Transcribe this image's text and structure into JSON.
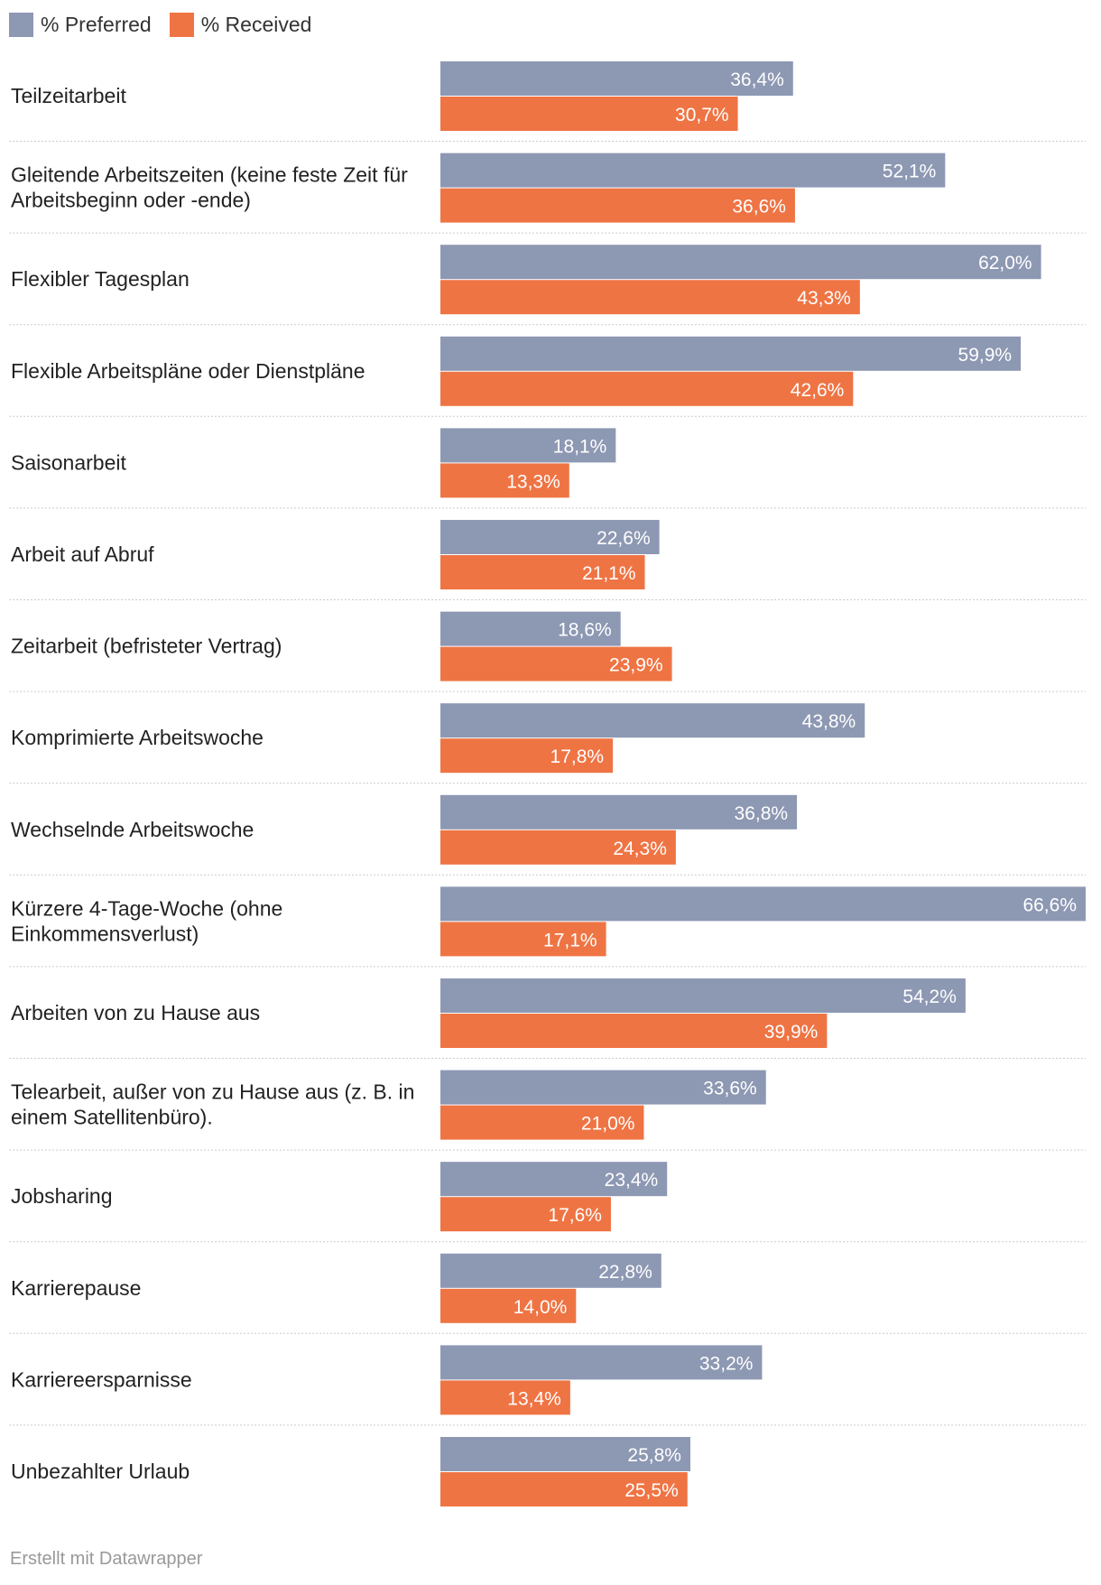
{
  "legend": {
    "preferred_label": "% Preferred",
    "received_label": "% Received"
  },
  "colors": {
    "preferred": "#8d98b3",
    "received": "#ef7444",
    "divider": "#cccccc"
  },
  "chart_data": {
    "type": "bar",
    "orientation": "horizontal",
    "categories": [
      [
        "Teilzeitarbeit"
      ],
      [
        "Gleitende Arbeitszeiten (keine feste Zeit für",
        "Arbeitsbeginn oder -ende)"
      ],
      [
        "Flexibler Tagesplan"
      ],
      [
        "Flexible Arbeitspläne oder Dienstpläne"
      ],
      [
        "Saisonarbeit"
      ],
      [
        "Arbeit auf Abruf"
      ],
      [
        "Zeitarbeit (befristeter Vertrag)"
      ],
      [
        "Komprimierte Arbeitswoche"
      ],
      [
        "Wechselnde Arbeitswoche"
      ],
      [
        "Kürzere 4-Tage-Woche (ohne",
        "Einkommensverlust)"
      ],
      [
        "Arbeiten von zu Hause aus"
      ],
      [
        "Telearbeit, außer von zu Hause aus (z. B. in",
        "einem Satellitenbüro)."
      ],
      [
        "Jobsharing"
      ],
      [
        "Karrierepause"
      ],
      [
        "Karriereersparnisse"
      ],
      [
        "Unbezahlter Urlaub"
      ]
    ],
    "series": [
      {
        "name": "% Preferred",
        "values": [
          36.4,
          52.1,
          62.0,
          59.9,
          18.1,
          22.6,
          18.6,
          43.8,
          36.8,
          66.6,
          54.2,
          33.6,
          23.4,
          22.8,
          33.2,
          25.8
        ],
        "labels": [
          "36,4%",
          "52,1%",
          "62,0%",
          "59,9%",
          "18,1%",
          "22,6%",
          "18,6%",
          "43,8%",
          "36,8%",
          "66,6%",
          "54,2%",
          "33,6%",
          "23,4%",
          "22,8%",
          "33,2%",
          "25,8%"
        ]
      },
      {
        "name": "% Received",
        "values": [
          30.7,
          36.6,
          43.3,
          42.6,
          13.3,
          21.1,
          23.9,
          17.8,
          24.3,
          17.1,
          39.9,
          21.0,
          17.6,
          14.0,
          13.4,
          25.5
        ],
        "labels": [
          "30,7%",
          "36,6%",
          "43,3%",
          "42,6%",
          "13,3%",
          "21,1%",
          "23,9%",
          "17,8%",
          "24,3%",
          "17,1%",
          "39,9%",
          "21,0%",
          "17,6%",
          "14,0%",
          "13,4%",
          "25,5%"
        ]
      }
    ],
    "xlim": [
      0,
      66.6
    ],
    "grid": false
  },
  "footer": {
    "credit": "Erstellt mit Datawrapper"
  }
}
